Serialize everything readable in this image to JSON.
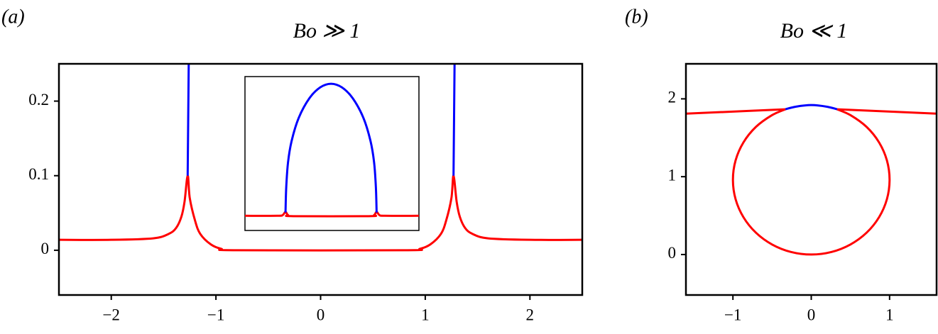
{
  "chart_data": [
    {
      "type": "line",
      "panel_label": "(a)",
      "title": "Bo ≫ 1",
      "xlim": [
        -2.5,
        2.5
      ],
      "ylim": [
        -0.06,
        0.25
      ],
      "xticks": [
        {
          "value": -2,
          "label": "−2"
        },
        {
          "value": -1,
          "label": "−1"
        },
        0,
        1,
        2
      ],
      "yticks": [
        0,
        0.1,
        0.2
      ],
      "series": [
        {
          "color": "#ff0000",
          "x": [
            -2.5,
            -2,
            -1.6,
            -1.45,
            -1.38,
            -1.33,
            -1.3,
            -1.27,
            -1.25,
            -1.2,
            -1.15,
            -1.05,
            -0.95,
            -0.8,
            0.8,
            0.95,
            1.05,
            1.15,
            1.2,
            1.25,
            1.27,
            1.3,
            1.33,
            1.38,
            1.45,
            1.6,
            2,
            2.5
          ],
          "values": [
            0.014,
            0.014,
            0.016,
            0.022,
            0.03,
            0.045,
            0.065,
            0.1,
            0.07,
            0.04,
            0.022,
            0.008,
            0.002,
            0,
            0,
            0.002,
            0.008,
            0.022,
            0.04,
            0.07,
            0.1,
            0.065,
            0.045,
            0.03,
            0.022,
            0.016,
            0.014,
            0.014
          ]
        },
        {
          "color": "#0000ff",
          "x": [
            -1.27,
            -1.26,
            null,
            1.27,
            1.28
          ],
          "values": [
            0.1,
            0.25,
            null,
            0.1,
            0.25
          ]
        }
      ],
      "inset": {
        "xlim": [
          -2.4,
          2.45
        ],
        "ylim": [
          -0.4,
          3.9
        ],
        "series": [
          {
            "color": "#ff0000",
            "x": [
              -2.4,
              -1.5,
              -1.35,
              -1.27,
              -1.2,
              -1.05,
              1.05,
              1.2,
              1.27,
              1.35,
              1.5,
              2.45
            ],
            "values": [
              0.01,
              0.01,
              0.03,
              0.12,
              0.03,
              0,
              0,
              0.03,
              0.12,
              0.03,
              0.01,
              0.01
            ]
          },
          {
            "color": "#0000ff",
            "x": [
              -1.27,
              -1.25,
              -1.2,
              -1.1,
              -0.9,
              -0.6,
              -0.3,
              0,
              0.3,
              0.6,
              0.9,
              1.1,
              1.2,
              1.25,
              1.27
            ],
            "values": [
              0.1,
              0.8,
              1.5,
              2.1,
              2.75,
              3.3,
              3.6,
              3.7,
              3.6,
              3.3,
              2.75,
              2.1,
              1.5,
              0.8,
              0.1
            ]
          }
        ]
      }
    },
    {
      "type": "line",
      "panel_label": "(b)",
      "title": "Bo ≪ 1",
      "xlim": [
        -1.6,
        1.6
      ],
      "ylim": [
        -0.52,
        2.45
      ],
      "xticks": [
        {
          "value": -1,
          "label": "−1"
        },
        0,
        1
      ],
      "yticks": [
        0,
        1,
        2
      ],
      "series": [
        {
          "color": "#ff0000",
          "x": [
            -1.6,
            -0.8,
            -0.33,
            null,
            0.33,
            0.8,
            1.6
          ],
          "values": [
            1.81,
            1.845,
            1.866,
            null,
            1.866,
            1.845,
            1.81
          ]
        },
        {
          "color": "#ff0000",
          "x": [
            0.33,
            0.5,
            0.707,
            0.866,
            0.966,
            1,
            0.966,
            0.866,
            0.707,
            0.5,
            0.259,
            0,
            -0.259,
            -0.5,
            -0.707,
            -0.866,
            -0.966,
            -1,
            -0.966,
            -0.866,
            -0.707,
            -0.5,
            -0.33
          ],
          "values": [
            1.866,
            1.791,
            1.639,
            1.44,
            1.209,
            0.96,
            0.711,
            0.48,
            0.281,
            0.129,
            0.033,
            0,
            0.033,
            0.129,
            0.281,
            0.48,
            0.711,
            0.96,
            1.209,
            1.44,
            1.639,
            1.791,
            1.866
          ]
        },
        {
          "color": "#0000ff",
          "x": [
            -0.33,
            -0.2,
            0,
            0.2,
            0.33
          ],
          "values": [
            1.866,
            1.899,
            1.92,
            1.899,
            1.866
          ]
        }
      ]
    }
  ]
}
